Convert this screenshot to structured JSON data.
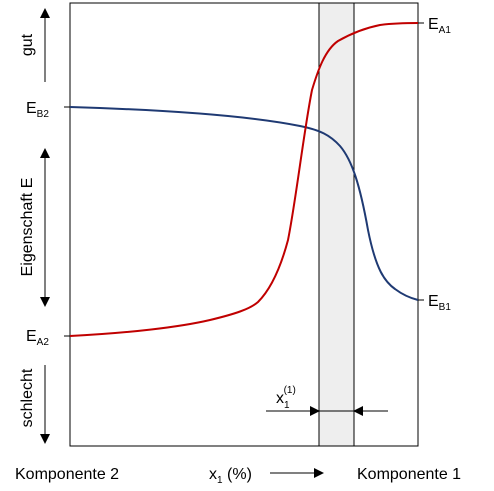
{
  "diagram": {
    "labels": {
      "E_A1": {
        "base": "E",
        "sub": "A1"
      },
      "E_A2": {
        "base": "E",
        "sub": "A2"
      },
      "E_B1": {
        "base": "E",
        "sub": "B1"
      },
      "E_B2": {
        "base": "E",
        "sub": "B2"
      },
      "x1_mark": {
        "base": "x",
        "sub": "1",
        "sup": "(1)"
      },
      "x_axis": {
        "base": "x",
        "sub": "1",
        "suffix": " (%)"
      },
      "left_component": "Komponente 2",
      "right_component": "Komponente 1",
      "y_gut": "gut",
      "y_property": "Eigenschaft E",
      "y_bad": "schlecht"
    },
    "colors": {
      "curve_A": "#c00000",
      "curve_B": "#1f3a73",
      "band_fill": "#eeeeee",
      "frame": "#000000"
    }
  }
}
